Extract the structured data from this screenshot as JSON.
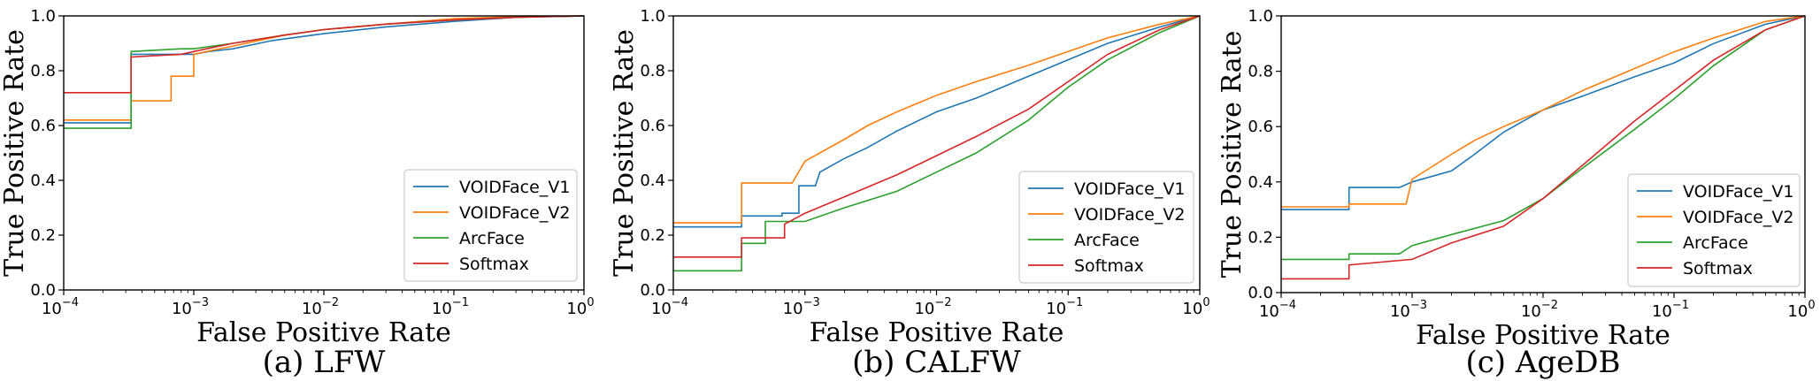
{
  "colors": {
    "VOIDFace_V1": "#1f77b4",
    "VOIDFace_V2": "#ff7f0e",
    "ArcFace": "#2ca02c",
    "Softmax": "#d62728"
  },
  "chart_data": [
    {
      "type": "line",
      "caption": "(a) LFW",
      "xlabel": "False Positive Rate",
      "ylabel": "True Positive Rate",
      "xscale": "log",
      "xlim": [
        0.0001,
        1
      ],
      "ylim": [
        0,
        1
      ],
      "xticks": [
        {
          "value": 0.0001,
          "base": "10",
          "exp": "−4"
        },
        {
          "value": 0.001,
          "base": "10",
          "exp": "−3"
        },
        {
          "value": 0.01,
          "base": "10",
          "exp": "−2"
        },
        {
          "value": 0.1,
          "base": "10",
          "exp": "−1"
        },
        {
          "value": 1,
          "base": "10",
          "exp": "0"
        }
      ],
      "yticks": [
        "0.0",
        "0.2",
        "0.4",
        "0.6",
        "0.8",
        "1.0"
      ],
      "legend_position": "lower-right",
      "series": [
        {
          "name": "VOIDFace_V1",
          "points": [
            [
              0.0001,
              0.61
            ],
            [
              0.00033,
              0.61
            ],
            [
              0.00033,
              0.86
            ],
            [
              0.001,
              0.86
            ],
            [
              0.0013,
              0.87
            ],
            [
              0.002,
              0.88
            ],
            [
              0.004,
              0.91
            ],
            [
              0.01,
              0.935
            ],
            [
              0.03,
              0.96
            ],
            [
              0.1,
              0.98
            ],
            [
              0.3,
              0.995
            ],
            [
              1,
              1
            ]
          ]
        },
        {
          "name": "VOIDFace_V2",
          "points": [
            [
              0.0001,
              0.62
            ],
            [
              0.00033,
              0.62
            ],
            [
              0.00033,
              0.69
            ],
            [
              0.00067,
              0.69
            ],
            [
              0.00067,
              0.78
            ],
            [
              0.001,
              0.78
            ],
            [
              0.001,
              0.86
            ],
            [
              0.002,
              0.89
            ],
            [
              0.005,
              0.93
            ],
            [
              0.01,
              0.95
            ],
            [
              0.03,
              0.97
            ],
            [
              0.1,
              0.99
            ],
            [
              0.3,
              0.997
            ],
            [
              1,
              1
            ]
          ]
        },
        {
          "name": "ArcFace",
          "points": [
            [
              0.0001,
              0.59
            ],
            [
              0.00033,
              0.59
            ],
            [
              0.00033,
              0.87
            ],
            [
              0.0008,
              0.88
            ],
            [
              0.001,
              0.88
            ],
            [
              0.002,
              0.9
            ],
            [
              0.005,
              0.93
            ],
            [
              0.01,
              0.95
            ],
            [
              0.03,
              0.97
            ],
            [
              0.1,
              0.985
            ],
            [
              0.3,
              0.995
            ],
            [
              1,
              1
            ]
          ]
        },
        {
          "name": "Softmax",
          "points": [
            [
              0.0001,
              0.72
            ],
            [
              0.00033,
              0.72
            ],
            [
              0.00033,
              0.85
            ],
            [
              0.0008,
              0.86
            ],
            [
              0.001,
              0.87
            ],
            [
              0.002,
              0.9
            ],
            [
              0.005,
              0.93
            ],
            [
              0.01,
              0.95
            ],
            [
              0.03,
              0.97
            ],
            [
              0.1,
              0.985
            ],
            [
              0.3,
              0.995
            ],
            [
              1,
              1
            ]
          ]
        }
      ]
    },
    {
      "type": "line",
      "caption": "(b) CALFW",
      "xlabel": "False Positive Rate",
      "ylabel": "True Positive Rate",
      "xscale": "log",
      "xlim": [
        0.0001,
        1
      ],
      "ylim": [
        0,
        1
      ],
      "xticks": [
        {
          "value": 0.0001,
          "base": "10",
          "exp": "−4"
        },
        {
          "value": 0.001,
          "base": "10",
          "exp": "−3"
        },
        {
          "value": 0.01,
          "base": "10",
          "exp": "−2"
        },
        {
          "value": 0.1,
          "base": "10",
          "exp": "−1"
        },
        {
          "value": 1,
          "base": "10",
          "exp": "0"
        }
      ],
      "yticks": [
        "0.0",
        "0.2",
        "0.4",
        "0.6",
        "0.8",
        "1.0"
      ],
      "legend_position": "lower-right",
      "series": [
        {
          "name": "VOIDFace_V1",
          "points": [
            [
              0.0001,
              0.23
            ],
            [
              0.00033,
              0.23
            ],
            [
              0.00033,
              0.27
            ],
            [
              0.00067,
              0.27
            ],
            [
              0.00067,
              0.28
            ],
            [
              0.0009,
              0.28
            ],
            [
              0.0009,
              0.38
            ],
            [
              0.0012,
              0.38
            ],
            [
              0.0013,
              0.43
            ],
            [
              0.002,
              0.48
            ],
            [
              0.003,
              0.52
            ],
            [
              0.005,
              0.58
            ],
            [
              0.01,
              0.65
            ],
            [
              0.02,
              0.7
            ],
            [
              0.05,
              0.78
            ],
            [
              0.1,
              0.84
            ],
            [
              0.2,
              0.9
            ],
            [
              0.5,
              0.96
            ],
            [
              1,
              1
            ]
          ]
        },
        {
          "name": "VOIDFace_V2",
          "points": [
            [
              0.0001,
              0.245
            ],
            [
              0.00033,
              0.245
            ],
            [
              0.00033,
              0.39
            ],
            [
              0.0008,
              0.39
            ],
            [
              0.001,
              0.47
            ],
            [
              0.002,
              0.55
            ],
            [
              0.003,
              0.6
            ],
            [
              0.005,
              0.65
            ],
            [
              0.01,
              0.71
            ],
            [
              0.02,
              0.76
            ],
            [
              0.05,
              0.82
            ],
            [
              0.1,
              0.87
            ],
            [
              0.2,
              0.92
            ],
            [
              0.5,
              0.97
            ],
            [
              1,
              1
            ]
          ]
        },
        {
          "name": "ArcFace",
          "points": [
            [
              0.0001,
              0.07
            ],
            [
              0.00033,
              0.07
            ],
            [
              0.00033,
              0.17
            ],
            [
              0.0005,
              0.17
            ],
            [
              0.0005,
              0.25
            ],
            [
              0.001,
              0.25
            ],
            [
              0.002,
              0.3
            ],
            [
              0.005,
              0.36
            ],
            [
              0.01,
              0.43
            ],
            [
              0.02,
              0.5
            ],
            [
              0.05,
              0.62
            ],
            [
              0.1,
              0.74
            ],
            [
              0.2,
              0.84
            ],
            [
              0.5,
              0.94
            ],
            [
              1,
              1
            ]
          ]
        },
        {
          "name": "Softmax",
          "points": [
            [
              0.0001,
              0.12
            ],
            [
              0.00033,
              0.12
            ],
            [
              0.00033,
              0.19
            ],
            [
              0.0007,
              0.19
            ],
            [
              0.0007,
              0.24
            ],
            [
              0.001,
              0.28
            ],
            [
              0.002,
              0.34
            ],
            [
              0.005,
              0.42
            ],
            [
              0.01,
              0.49
            ],
            [
              0.02,
              0.56
            ],
            [
              0.05,
              0.66
            ],
            [
              0.1,
              0.76
            ],
            [
              0.2,
              0.86
            ],
            [
              0.5,
              0.95
            ],
            [
              1,
              1
            ]
          ]
        }
      ]
    },
    {
      "type": "line",
      "caption": "(c) AgeDB",
      "xlabel": "False Positive Rate",
      "ylabel": "True Positive Rate",
      "xscale": "log",
      "xlim": [
        0.0001,
        1
      ],
      "ylim": [
        0,
        1
      ],
      "xticks": [
        {
          "value": 0.0001,
          "base": "10",
          "exp": "−4"
        },
        {
          "value": 0.001,
          "base": "10",
          "exp": "−3"
        },
        {
          "value": 0.01,
          "base": "10",
          "exp": "−2"
        },
        {
          "value": 0.1,
          "base": "10",
          "exp": "−1"
        },
        {
          "value": 1,
          "base": "10",
          "exp": "0"
        }
      ],
      "yticks": [
        "0.0",
        "0.2",
        "0.4",
        "0.6",
        "0.8",
        "1.0"
      ],
      "legend_position": "lower-right",
      "series": [
        {
          "name": "VOIDFace_V1",
          "points": [
            [
              0.0001,
              0.3
            ],
            [
              0.00033,
              0.3
            ],
            [
              0.00033,
              0.38
            ],
            [
              0.0008,
              0.38
            ],
            [
              0.001,
              0.4
            ],
            [
              0.002,
              0.44
            ],
            [
              0.003,
              0.5
            ],
            [
              0.005,
              0.58
            ],
            [
              0.01,
              0.66
            ],
            [
              0.02,
              0.71
            ],
            [
              0.05,
              0.78
            ],
            [
              0.1,
              0.83
            ],
            [
              0.2,
              0.9
            ],
            [
              0.5,
              0.97
            ],
            [
              1,
              1
            ]
          ]
        },
        {
          "name": "VOIDFace_V2",
          "points": [
            [
              0.0001,
              0.31
            ],
            [
              0.00033,
              0.31
            ],
            [
              0.00033,
              0.32
            ],
            [
              0.0009,
              0.32
            ],
            [
              0.001,
              0.41
            ],
            [
              0.002,
              0.5
            ],
            [
              0.003,
              0.55
            ],
            [
              0.005,
              0.6
            ],
            [
              0.01,
              0.66
            ],
            [
              0.02,
              0.73
            ],
            [
              0.05,
              0.81
            ],
            [
              0.1,
              0.87
            ],
            [
              0.2,
              0.92
            ],
            [
              0.5,
              0.98
            ],
            [
              1,
              1
            ]
          ]
        },
        {
          "name": "ArcFace",
          "points": [
            [
              0.0001,
              0.12
            ],
            [
              0.00033,
              0.12
            ],
            [
              0.00033,
              0.14
            ],
            [
              0.0008,
              0.14
            ],
            [
              0.001,
              0.17
            ],
            [
              0.002,
              0.21
            ],
            [
              0.005,
              0.26
            ],
            [
              0.01,
              0.34
            ],
            [
              0.02,
              0.45
            ],
            [
              0.05,
              0.59
            ],
            [
              0.1,
              0.7
            ],
            [
              0.2,
              0.82
            ],
            [
              0.5,
              0.95
            ],
            [
              1,
              1
            ]
          ]
        },
        {
          "name": "Softmax",
          "points": [
            [
              0.0001,
              0.05
            ],
            [
              0.00033,
              0.05
            ],
            [
              0.00033,
              0.1
            ],
            [
              0.001,
              0.12
            ],
            [
              0.002,
              0.18
            ],
            [
              0.005,
              0.24
            ],
            [
              0.01,
              0.34
            ],
            [
              0.02,
              0.46
            ],
            [
              0.05,
              0.62
            ],
            [
              0.1,
              0.73
            ],
            [
              0.2,
              0.84
            ],
            [
              0.5,
              0.95
            ],
            [
              1,
              1
            ]
          ]
        }
      ]
    }
  ]
}
